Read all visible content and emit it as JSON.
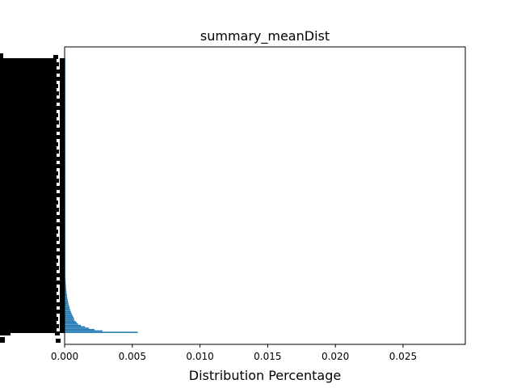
{
  "chart_data": {
    "type": "bar",
    "orientation": "horizontal",
    "title": "summary_meanDist",
    "xlabel": "Distribution Percentage",
    "ylabel": "",
    "xlim": [
      0.0,
      0.0296
    ],
    "xticks": [
      0.0,
      0.005,
      0.01,
      0.015,
      0.02,
      0.025
    ],
    "xtick_labels": [
      "0.000",
      "0.005",
      "0.010",
      "0.015",
      "0.020",
      "0.025"
    ],
    "category_count": 200,
    "category_labels_legible": false,
    "values_top_10": [
      0.0054,
      0.0028,
      0.0022,
      0.0018,
      0.0015,
      0.0012,
      0.001,
      0.0009,
      0.0008,
      0.0007
    ],
    "values_tail": 5e-05,
    "bar_color": "#1f77b4",
    "grid": false,
    "legend": false
  }
}
